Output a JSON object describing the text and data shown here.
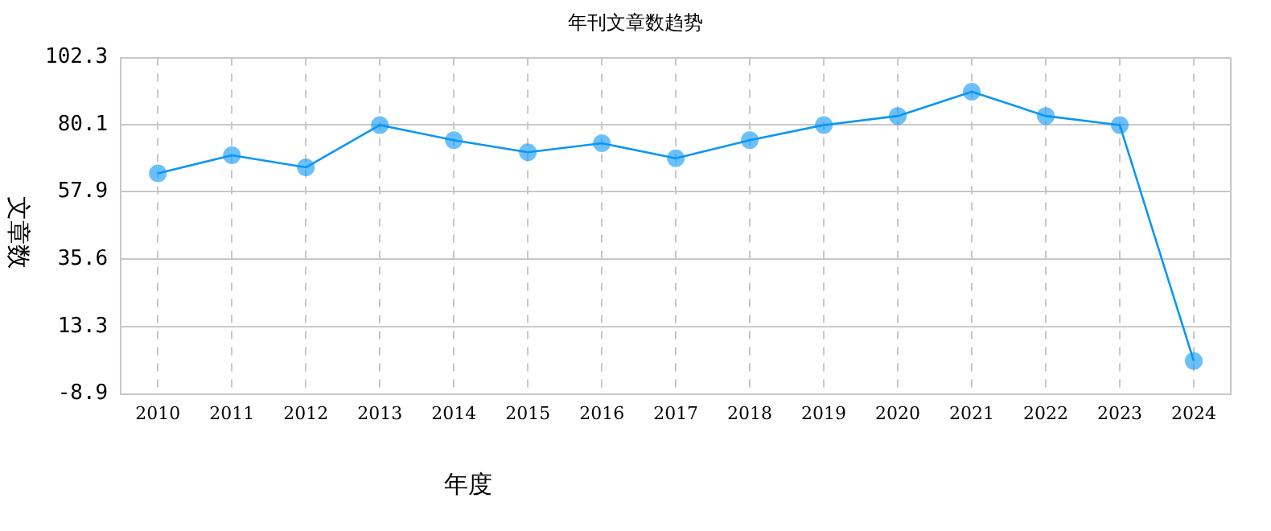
{
  "chart_data": {
    "type": "line",
    "title": "年刊文章数趋势",
    "xlabel": "年度",
    "ylabel": "文章数",
    "categories": [
      "2010",
      "2011",
      "2012",
      "2013",
      "2014",
      "2015",
      "2016",
      "2017",
      "2018",
      "2019",
      "2020",
      "2021",
      "2022",
      "2023",
      "2024"
    ],
    "series": [
      {
        "color": "#0a96f5",
        "values": [
          64,
          70,
          66,
          80,
          75,
          71,
          74,
          69,
          75,
          80,
          83,
          91,
          83,
          80,
          2
        ]
      }
    ],
    "ylim": [
      -8.9,
      102.3
    ],
    "yticks": [
      -8.9,
      13.3,
      35.6,
      57.9,
      80.1,
      102.3
    ],
    "grid": true,
    "marker": "circle",
    "line_style": "solid",
    "legend": false
  }
}
